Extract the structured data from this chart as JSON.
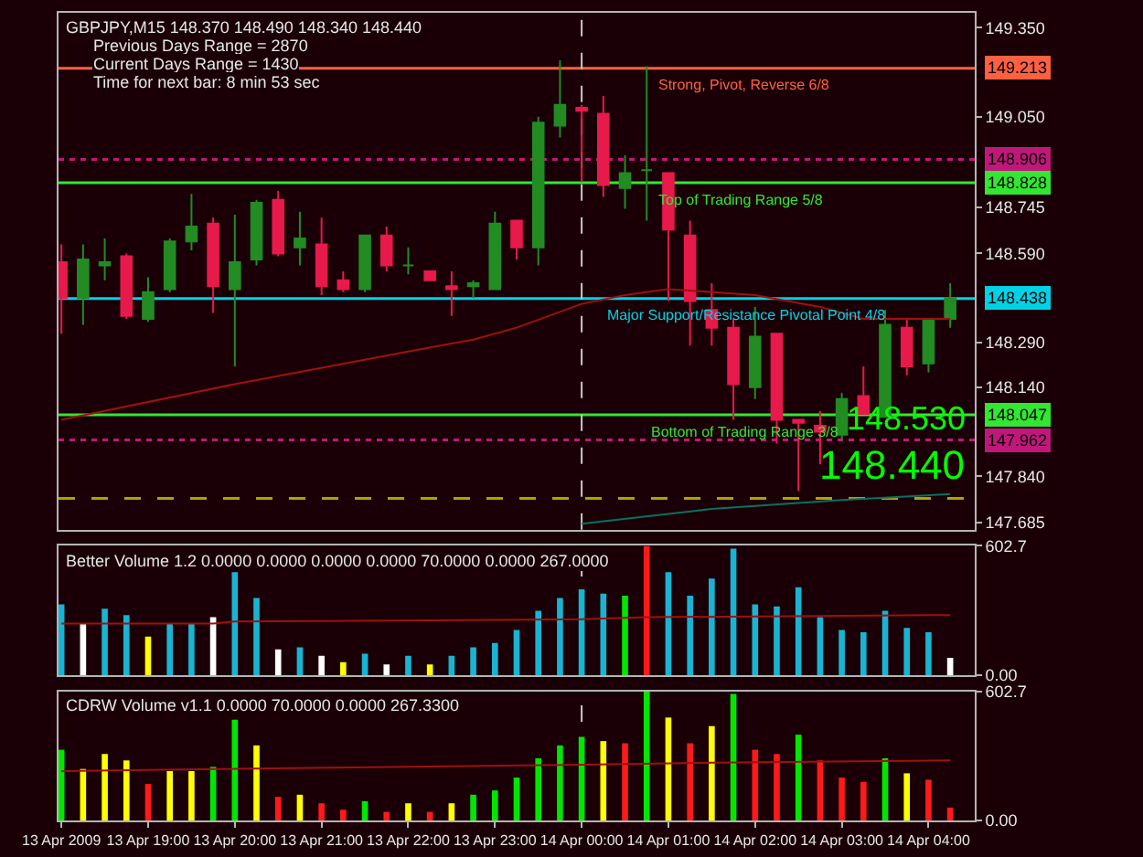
{
  "chart_data": [
    {
      "type": "candlestick",
      "title": "GBPJPY,M15 148.370 148.490 148.340 148.440",
      "annotations": [
        "Previous Days Range = 2870",
        "Current Days Range = 1430",
        "Time for next bar: 8 min 53 sec",
        "148.530",
        "148.440",
        {
          "text": "Strong, Pivot, Reverse 6/8",
          "x": "2009-04-14T00:50",
          "y": 149.213
        },
        {
          "text": "Top of Trading Range 5/8",
          "x": "2009-04-14T00:50",
          "y": 148.828
        },
        {
          "text": "Major Support/Resistance Pivotal Point 4/8",
          "x": "2009-04-14T00:15",
          "y": 148.438
        },
        {
          "text": "Bottom of Trading Range 3/8",
          "x": "2009-04-14T00:45",
          "y": 148.047
        }
      ],
      "x": [
        "2009-04-13T18:00",
        "2009-04-13T18:15",
        "2009-04-13T18:30",
        "2009-04-13T18:45",
        "2009-04-13T19:00",
        "2009-04-13T19:15",
        "2009-04-13T19:30",
        "2009-04-13T19:45",
        "2009-04-13T20:00",
        "2009-04-13T20:15",
        "2009-04-13T20:30",
        "2009-04-13T20:45",
        "2009-04-13T21:00",
        "2009-04-13T21:15",
        "2009-04-13T21:30",
        "2009-04-13T21:45",
        "2009-04-13T22:00",
        "2009-04-13T22:15",
        "2009-04-13T22:30",
        "2009-04-13T22:45",
        "2009-04-13T23:00",
        "2009-04-13T23:15",
        "2009-04-13T23:30",
        "2009-04-13T23:45",
        "2009-04-14T00:00",
        "2009-04-14T00:15",
        "2009-04-14T00:30",
        "2009-04-14T00:45",
        "2009-04-14T01:00",
        "2009-04-14T01:15",
        "2009-04-14T01:30",
        "2009-04-14T01:45",
        "2009-04-14T02:00",
        "2009-04-14T02:15",
        "2009-04-14T02:30",
        "2009-04-14T02:45",
        "2009-04-14T03:00",
        "2009-04-14T03:15",
        "2009-04-14T03:30",
        "2009-04-14T03:45",
        "2009-04-14T04:00",
        "2009-04-14T04:15"
      ],
      "ohlc": [
        [
          148.56,
          148.62,
          148.32,
          148.44
        ],
        [
          148.44,
          148.62,
          148.35,
          148.57
        ],
        [
          148.55,
          148.64,
          148.5,
          148.56
        ],
        [
          148.58,
          148.59,
          148.37,
          148.38
        ],
        [
          148.37,
          148.51,
          148.36,
          148.46
        ],
        [
          148.47,
          148.64,
          148.46,
          148.63
        ],
        [
          148.63,
          148.79,
          148.6,
          148.68
        ],
        [
          148.69,
          148.71,
          148.39,
          148.48
        ],
        [
          148.47,
          148.72,
          148.21,
          148.56
        ],
        [
          148.57,
          148.77,
          148.55,
          148.76
        ],
        [
          148.77,
          148.8,
          148.58,
          148.59
        ],
        [
          148.61,
          148.73,
          148.55,
          148.64
        ],
        [
          148.62,
          148.71,
          148.45,
          148.48
        ],
        [
          148.5,
          148.53,
          148.46,
          148.47
        ],
        [
          148.47,
          148.65,
          148.46,
          148.65
        ],
        [
          148.65,
          148.68,
          148.53,
          148.55
        ],
        [
          148.55,
          148.61,
          148.52,
          148.55
        ],
        [
          148.53,
          148.53,
          148.5,
          148.5
        ],
        [
          148.48,
          148.53,
          148.38,
          148.47
        ],
        [
          148.48,
          148.5,
          148.44,
          148.49
        ],
        [
          148.47,
          148.73,
          148.47,
          148.69
        ],
        [
          148.7,
          148.7,
          148.57,
          148.61
        ],
        [
          148.61,
          149.05,
          148.55,
          149.03
        ],
        [
          149.02,
          149.24,
          148.98,
          149.09
        ],
        [
          149.08,
          149.09,
          148.83,
          149.07
        ],
        [
          149.06,
          149.12,
          148.78,
          148.82
        ],
        [
          148.81,
          148.92,
          148.74,
          148.86
        ],
        [
          148.87,
          149.22,
          148.7,
          148.87
        ],
        [
          148.86,
          148.86,
          148.43,
          148.67
        ],
        [
          148.65,
          148.7,
          148.28,
          148.43
        ],
        [
          148.4,
          148.49,
          148.28,
          148.34
        ],
        [
          148.34,
          148.37,
          148.03,
          148.15
        ],
        [
          148.14,
          148.41,
          148.1,
          148.31
        ],
        [
          148.32,
          148.32,
          147.95,
          148.03
        ],
        [
          148.03,
          148.03,
          147.79,
          148.02
        ],
        [
          148.01,
          148.06,
          147.88,
          147.99
        ],
        [
          147.98,
          148.12,
          147.96,
          148.1
        ],
        [
          148.11,
          148.21,
          148.05,
          148.05
        ],
        [
          148.04,
          148.4,
          148.04,
          148.35
        ],
        [
          148.34,
          148.37,
          148.18,
          148.21
        ],
        [
          148.22,
          148.37,
          148.19,
          148.37
        ],
        [
          148.37,
          148.49,
          148.34,
          148.44
        ]
      ],
      "colors": [
        "#e8194b",
        "#228b22",
        "#228b22",
        "#e8194b",
        "#228b22",
        "#228b22",
        "#228b22",
        "#e8194b",
        "#228b22",
        "#228b22",
        "#e8194b",
        "#228b22",
        "#e8194b",
        "#e8194b",
        "#228b22",
        "#e8194b",
        "#228b22",
        "#e8194b",
        "#e8194b",
        "#228b22",
        "#228b22",
        "#e8194b",
        "#228b22",
        "#228b22",
        "#e8194b",
        "#e8194b",
        "#228b22",
        "#228b22",
        "#e8194b",
        "#e8194b",
        "#e8194b",
        "#e8194b",
        "#228b22",
        "#e8194b",
        "#e8194b",
        "#e8194b",
        "#228b22",
        "#e8194b",
        "#228b22",
        "#e8194b",
        "#228b22",
        "#228b22"
      ],
      "series": [
        {
          "type": "line",
          "color": "#a01010",
          "x": [
            "2009-04-13T18:00",
            "2009-04-13T20:00",
            "2009-04-13T22:00",
            "2009-04-13T22:45",
            "2009-04-13T23:15",
            "2009-04-14T00:00",
            "2009-04-14T00:30",
            "2009-04-14T01:00",
            "2009-04-14T02:00",
            "2009-04-14T02:45",
            "2009-04-14T03:15",
            "2009-04-14T04:15"
          ],
          "values": [
            148.03,
            148.15,
            148.26,
            148.3,
            148.34,
            148.42,
            148.45,
            148.47,
            148.45,
            148.41,
            148.37,
            148.37
          ]
        },
        {
          "type": "line",
          "color": "#0a7060",
          "x": [
            "2009-04-14T00:00",
            "2009-04-14T01:30",
            "2009-04-14T03:00",
            "2009-04-14T04:15"
          ],
          "values": [
            147.68,
            147.73,
            147.76,
            147.78
          ]
        }
      ],
      "xlim": [
        "2009-04-13T17:58",
        "2009-04-14T04:32"
      ],
      "ylim": [
        147.66,
        149.4
      ],
      "yticks": [
        {
          "value": 149.35,
          "label": "149.350"
        },
        {
          "value": 149.05,
          "label": "149.050"
        },
        {
          "value": 148.745,
          "label": "148.745"
        },
        {
          "value": 148.59,
          "label": "148.590"
        },
        {
          "value": 148.29,
          "label": "148.290"
        },
        {
          "value": 148.14,
          "label": "148.140"
        },
        {
          "value": 147.84,
          "label": "147.840"
        },
        {
          "value": 147.685,
          "label": "147.685"
        }
      ],
      "ref_lines": [
        {
          "axis": "y",
          "value": 149.213,
          "label": "149.213",
          "color": "#ff6040",
          "line_style": "solid"
        },
        {
          "axis": "y",
          "value": 148.906,
          "label": "148.906",
          "color": "#c0187a",
          "line_style": "dotted"
        },
        {
          "axis": "y",
          "value": 148.828,
          "label": "148.828",
          "color": "#32e632",
          "line_style": "solid"
        },
        {
          "axis": "y",
          "value": 148.438,
          "label": "148.438",
          "color": "#00d2e6",
          "line_style": "solid"
        },
        {
          "axis": "y",
          "value": 148.047,
          "label": "148.047",
          "color": "#32e632",
          "line_style": "solid"
        },
        {
          "axis": "y",
          "value": 147.962,
          "label": "147.962",
          "color": "#c0187a",
          "line_style": "dotted"
        },
        {
          "axis": "y",
          "value": 147.765,
          "color": "#b4a000",
          "line_style": "dashed"
        },
        {
          "axis": "x",
          "value": "2009-04-14T00:00",
          "color": "#c8c8c8",
          "line_style": "dashed"
        }
      ],
      "tick_labels": "y",
      "grid": false
    },
    {
      "type": "bar",
      "title": "Better Volume 1.2 0.0000 0.0000 0.0000 0.0000 70.0000 0.0000 267.0000",
      "x": [
        "2009-04-13T18:00",
        "2009-04-13T18:15",
        "2009-04-13T18:30",
        "2009-04-13T18:45",
        "2009-04-13T19:00",
        "2009-04-13T19:15",
        "2009-04-13T19:30",
        "2009-04-13T19:45",
        "2009-04-13T20:00",
        "2009-04-13T20:15",
        "2009-04-13T20:30",
        "2009-04-13T20:45",
        "2009-04-13T21:00",
        "2009-04-13T21:15",
        "2009-04-13T21:30",
        "2009-04-13T21:45",
        "2009-04-13T22:00",
        "2009-04-13T22:15",
        "2009-04-13T22:30",
        "2009-04-13T22:45",
        "2009-04-13T23:00",
        "2009-04-13T23:15",
        "2009-04-13T23:30",
        "2009-04-13T23:45",
        "2009-04-14T00:00",
        "2009-04-14T00:15",
        "2009-04-14T00:30",
        "2009-04-14T00:45",
        "2009-04-14T01:00",
        "2009-04-14T01:15",
        "2009-04-14T01:30",
        "2009-04-14T01:45",
        "2009-04-14T02:00",
        "2009-04-14T02:15",
        "2009-04-14T02:30",
        "2009-04-14T02:45",
        "2009-04-14T03:00",
        "2009-04-14T03:15",
        "2009-04-14T03:30",
        "2009-04-14T03:45",
        "2009-04-14T04:00",
        "2009-04-14T04:15"
      ],
      "series": [
        {
          "values": [
            330,
            240,
            310,
            280,
            180,
            240,
            240,
            270,
            480,
            360,
            120,
            130,
            90,
            60,
            100,
            50,
            90,
            50,
            90,
            130,
            150,
            210,
            300,
            360,
            400,
            380,
            370,
            602.7,
            480,
            370,
            450,
            590,
            330,
            320,
            410,
            270,
            210,
            200,
            300,
            220,
            200,
            80
          ],
          "colors": [
            "#19b4d2",
            "#ffffff",
            "#19b4d2",
            "#19b4d2",
            "#ffff00",
            "#19b4d2",
            "#19b4d2",
            "#ffffff",
            "#19b4d2",
            "#19b4d2",
            "#ffffff",
            "#19b4d2",
            "#ffffff",
            "#ffff00",
            "#19b4d2",
            "#ffffff",
            "#19b4d2",
            "#ffff00",
            "#19b4d2",
            "#19b4d2",
            "#19b4d2",
            "#19b4d2",
            "#19b4d2",
            "#19b4d2",
            "#19b4d2",
            "#19b4d2",
            "#00e600",
            "#ff1a1a",
            "#19b4d2",
            "#19b4d2",
            "#19b4d2",
            "#19b4d2",
            "#19b4d2",
            "#19b4d2",
            "#19b4d2",
            "#19b4d2",
            "#19b4d2",
            "#19b4d2",
            "#19b4d2",
            "#19b4d2",
            "#19b4d2",
            "#ffffff"
          ]
        },
        {
          "type": "line",
          "color": "#a01010",
          "x": [
            "2009-04-13T18:00",
            "2009-04-13T19:45",
            "2009-04-13T20:00",
            "2009-04-14T00:00",
            "2009-04-14T00:45",
            "2009-04-14T04:15"
          ],
          "values": [
            240,
            240,
            250,
            260,
            270,
            280
          ]
        }
      ],
      "xlim": [
        "2009-04-13T17:58",
        "2009-04-14T04:32"
      ],
      "ylim": [
        0,
        602.7
      ],
      "yticks": [
        {
          "value": 602.7,
          "label": "602.7"
        },
        {
          "value": 0,
          "label": "0.00"
        }
      ],
      "ref_lines": [
        {
          "axis": "x",
          "value": "2009-04-14T00:00",
          "color": "#c8c8c8",
          "line_style": "dashed"
        }
      ],
      "tick_labels": "y",
      "grid": false
    },
    {
      "type": "bar",
      "title": "CDRW Volume v1.1 0.0000 70.0000 0.0000 267.3300",
      "x": [
        "2009-04-13T18:00",
        "2009-04-13T18:15",
        "2009-04-13T18:30",
        "2009-04-13T18:45",
        "2009-04-13T19:00",
        "2009-04-13T19:15",
        "2009-04-13T19:30",
        "2009-04-13T19:45",
        "2009-04-13T20:00",
        "2009-04-13T20:15",
        "2009-04-13T20:30",
        "2009-04-13T20:45",
        "2009-04-13T21:00",
        "2009-04-13T21:15",
        "2009-04-13T21:30",
        "2009-04-13T21:45",
        "2009-04-13T22:00",
        "2009-04-13T22:15",
        "2009-04-13T22:30",
        "2009-04-13T22:45",
        "2009-04-13T23:00",
        "2009-04-13T23:15",
        "2009-04-13T23:30",
        "2009-04-13T23:45",
        "2009-04-14T00:00",
        "2009-04-14T00:15",
        "2009-04-14T00:30",
        "2009-04-14T00:45",
        "2009-04-14T01:00",
        "2009-04-14T01:15",
        "2009-04-14T01:30",
        "2009-04-14T01:45",
        "2009-04-14T02:00",
        "2009-04-14T02:15",
        "2009-04-14T02:30",
        "2009-04-14T02:45",
        "2009-04-14T03:00",
        "2009-04-14T03:15",
        "2009-04-14T03:30",
        "2009-04-14T03:45",
        "2009-04-14T04:00",
        "2009-04-14T04:15"
      ],
      "series": [
        {
          "values": [
            330,
            240,
            310,
            280,
            170,
            230,
            230,
            250,
            470,
            350,
            110,
            120,
            80,
            50,
            90,
            40,
            80,
            40,
            80,
            120,
            140,
            200,
            290,
            350,
            390,
            370,
            360,
            602.7,
            480,
            360,
            440,
            590,
            330,
            310,
            400,
            280,
            200,
            180,
            290,
            220,
            190,
            60
          ],
          "colors": [
            "#00e600",
            "#ffff00",
            "#ffff00",
            "#ffff00",
            "#ff1a1a",
            "#ffff00",
            "#ffff00",
            "#00e600",
            "#00e600",
            "#ffff00",
            "#ff1a1a",
            "#ffff00",
            "#ff1a1a",
            "#ff1a1a",
            "#00e600",
            "#ff1a1a",
            "#ffff00",
            "#ff1a1a",
            "#ffff00",
            "#00e600",
            "#00e600",
            "#00e600",
            "#00e600",
            "#00e600",
            "#00e600",
            "#ffff00",
            "#ff1a1a",
            "#00e600",
            "#ffff00",
            "#ff1a1a",
            "#ffff00",
            "#00e600",
            "#ff1a1a",
            "#ff1a1a",
            "#00e600",
            "#ff1a1a",
            "#ff1a1a",
            "#ff1a1a",
            "#00e600",
            "#ffff00",
            "#ff1a1a",
            "#ff1a1a"
          ]
        },
        {
          "type": "line",
          "color": "#a01010",
          "x": [
            "2009-04-13T18:00",
            "2009-04-13T19:45",
            "2009-04-14T00:00",
            "2009-04-14T01:30",
            "2009-04-14T04:15"
          ],
          "values": [
            230,
            240,
            260,
            270,
            280
          ]
        }
      ],
      "xlim": [
        "2009-04-13T17:58",
        "2009-04-14T04:32"
      ],
      "xticks": [
        {
          "value": "2009-04-13T18:00",
          "label": "13 Apr 2009"
        },
        {
          "value": "2009-04-13T19:00",
          "label": "13 Apr 19:00"
        },
        {
          "value": "2009-04-13T20:00",
          "label": "13 Apr 20:00"
        },
        {
          "value": "2009-04-13T21:00",
          "label": "13 Apr 21:00"
        },
        {
          "value": "2009-04-13T22:00",
          "label": "13 Apr 22:00"
        },
        {
          "value": "2009-04-13T23:00",
          "label": "13 Apr 23:00"
        },
        {
          "value": "2009-04-14T00:00",
          "label": "14 Apr 00:00"
        },
        {
          "value": "2009-04-14T01:00",
          "label": "14 Apr 01:00"
        },
        {
          "value": "2009-04-14T02:00",
          "label": "14 Apr 02:00"
        },
        {
          "value": "2009-04-14T03:00",
          "label": "14 Apr 03:00"
        },
        {
          "value": "2009-04-14T04:00",
          "label": "14 Apr 04:00"
        }
      ],
      "ylim": [
        0,
        602.7
      ],
      "yticks": [
        {
          "value": 602.7,
          "label": "602.7"
        },
        {
          "value": 0,
          "label": "0.00"
        }
      ],
      "ref_lines": [
        {
          "axis": "x",
          "value": "2009-04-14T00:00",
          "color": "#c8c8c8",
          "line_style": "dashed"
        }
      ],
      "grid": false
    }
  ]
}
